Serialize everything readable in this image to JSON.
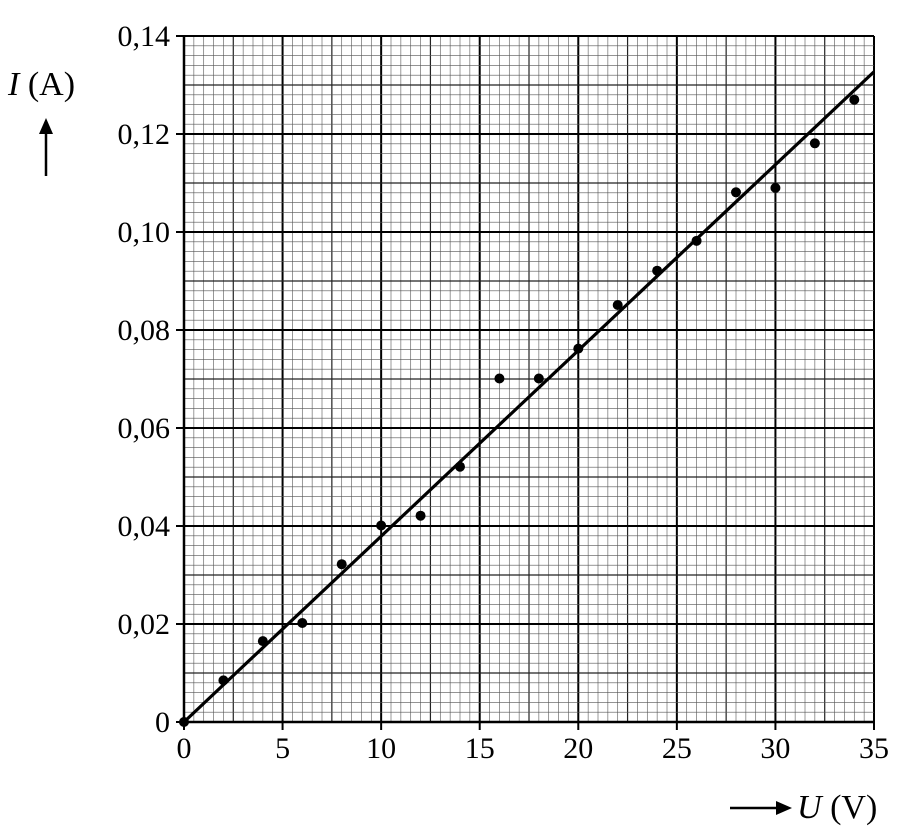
{
  "chart_data": {
    "type": "scatter",
    "title": "",
    "xlabel": {
      "var": "U",
      "unit": " (V)"
    },
    "ylabel": {
      "var": "I",
      "unit": " (A)"
    },
    "xlim": [
      0,
      35
    ],
    "ylim": [
      0,
      0.14
    ],
    "x_ticks": [
      0,
      5,
      10,
      15,
      20,
      25,
      30,
      35
    ],
    "x_tick_labels": [
      "0",
      "5",
      "10",
      "15",
      "20",
      "25",
      "30",
      "35"
    ],
    "y_ticks": [
      0,
      0.02,
      0.04,
      0.06,
      0.08,
      0.1,
      0.12,
      0.14
    ],
    "y_tick_labels": [
      "0",
      "0,02",
      "0,04",
      "0,06",
      "0,08",
      "0,10",
      "0,12",
      "0,14"
    ],
    "grid": true,
    "minor_step": {
      "x": 0.5,
      "y": 0.002
    },
    "medium_step": {
      "x": 2.5,
      "y": 0.01
    },
    "major_step": {
      "x": 5,
      "y": 0.02
    },
    "series": [
      {
        "x": [
          0,
          2,
          4,
          6,
          8,
          10,
          12,
          14,
          16,
          18,
          20,
          22,
          24,
          26,
          28,
          30,
          32,
          34
        ],
        "y": [
          0,
          0.0085,
          0.0165,
          0.0202,
          0.0322,
          0.0401,
          0.0421,
          0.0521,
          0.0701,
          0.0701,
          0.0762,
          0.0851,
          0.0921,
          0.0982,
          0.1081,
          0.109,
          0.1181,
          0.127
        ]
      }
    ],
    "fit_line": {
      "x": [
        0,
        35
      ],
      "y": [
        0,
        0.1327
      ]
    }
  }
}
